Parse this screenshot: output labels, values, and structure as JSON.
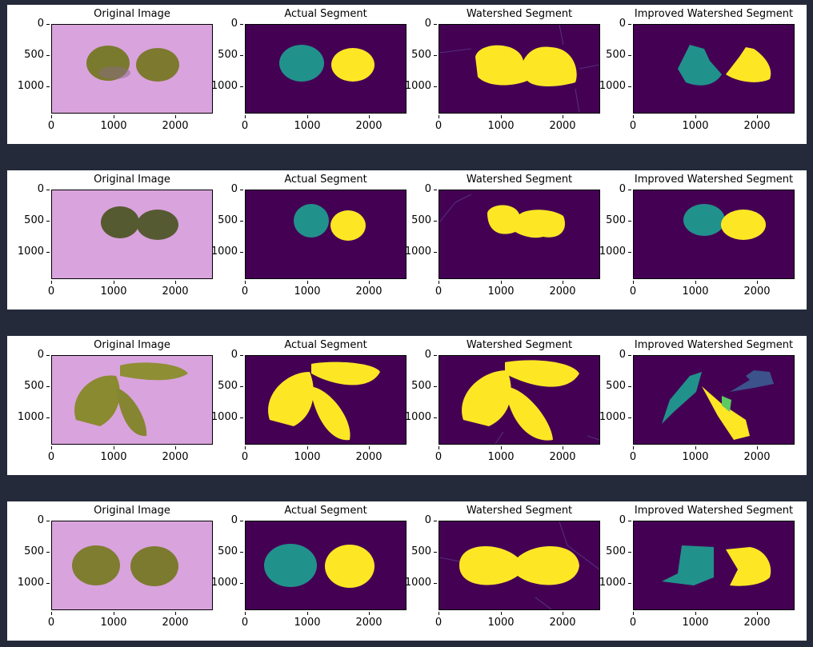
{
  "colors": {
    "background": "#252a3a",
    "panel": "#ffffff",
    "seg_bg": "#440154",
    "seg_teal": "#21918c",
    "seg_yellow": "#fde725",
    "seg_green": "#5ec962",
    "seg_blue": "#3b528b",
    "photo_bg": "#d9a3dd"
  },
  "axes": {
    "yticks": [
      "0",
      "500",
      "1000"
    ],
    "xticks": [
      "0",
      "1000",
      "2000"
    ]
  },
  "rows": [
    {
      "titles": [
        "Original Image",
        "Actual Segment",
        "Watershed Segment",
        "Improved Watershed Segment"
      ]
    },
    {
      "titles": [
        "Original Image",
        "Actual Segment",
        "Watershed Segment",
        "Improved Watershed Segment"
      ]
    },
    {
      "titles": [
        "Original Image",
        "Actual Segment",
        "Watershed Segment",
        "Improved Watershed Segment"
      ]
    },
    {
      "titles": [
        "Original Image",
        "Actual Segment",
        "Watershed Segment",
        "Improved Watershed Segment"
      ]
    }
  ]
}
